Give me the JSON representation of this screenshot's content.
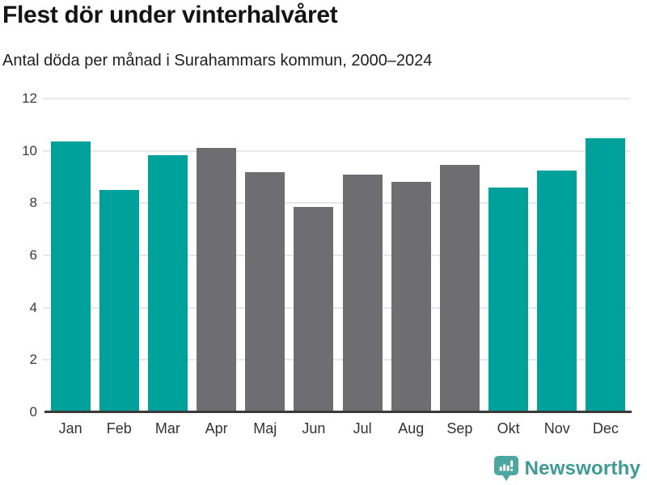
{
  "header": {
    "title": "Flest dör under vinterhalvåret",
    "subtitle": "Antal döda per månad i Surahammars kommun, 2000–2024"
  },
  "chart_data": {
    "type": "bar",
    "title": "Flest dör under vinterhalvåret",
    "subtitle": "Antal döda per månad i Surahammars kommun, 2000–2024",
    "categories": [
      "Jan",
      "Feb",
      "Mar",
      "Apr",
      "Maj",
      "Jun",
      "Jul",
      "Aug",
      "Sep",
      "Okt",
      "Nov",
      "Dec"
    ],
    "values": [
      10.35,
      8.5,
      9.85,
      10.1,
      9.2,
      7.85,
      9.1,
      8.8,
      9.45,
      8.6,
      9.25,
      10.5
    ],
    "bar_colors": [
      "#00A19B",
      "#00A19B",
      "#00A19B",
      "#6D6D72",
      "#6D6D72",
      "#6D6D72",
      "#6D6D72",
      "#6D6D72",
      "#6D6D72",
      "#00A19B",
      "#00A19B",
      "#00A19B"
    ],
    "color_meaning": {
      "winter_half_year": "#00A19B",
      "summer_half_year": "#6D6D72"
    },
    "xlabel": "",
    "ylabel": "",
    "ylim": [
      0,
      12
    ],
    "yticks": [
      0,
      2,
      4,
      6,
      8,
      10,
      12
    ],
    "grid": true,
    "legend": false
  },
  "footer": {
    "brand": "Newsworthy",
    "brand_color": "#3D9A94",
    "logo_color": "#4EA6A1"
  }
}
